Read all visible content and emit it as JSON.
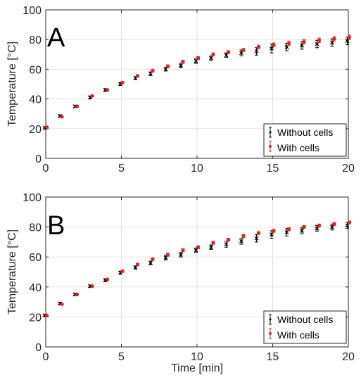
{
  "chart_data": [
    {
      "type": "scatter",
      "panel_label": "A",
      "xlabel": "",
      "ylabel": "Temperature [°C]",
      "xlim": [
        0,
        20
      ],
      "ylim": [
        0,
        100
      ],
      "xticks": [
        "0",
        "5",
        "10",
        "15",
        "20"
      ],
      "yticks": [
        "0",
        "20",
        "40",
        "60",
        "80",
        "100"
      ],
      "grid": true,
      "legend_position": "bottom-right",
      "series": [
        {
          "name": "Without cells",
          "color": "#000000",
          "marker": "x",
          "x": [
            0,
            1,
            2,
            3,
            4,
            5,
            6,
            7,
            8,
            9,
            10,
            11,
            12,
            13,
            14,
            15,
            16,
            17,
            18,
            19,
            20
          ],
          "y": [
            20.5,
            28.5,
            35,
            41,
            46,
            50,
            54,
            57,
            60,
            62.5,
            65.5,
            67.5,
            69.5,
            71,
            72,
            74,
            75,
            76,
            77,
            78,
            79
          ],
          "err": [
            0.8,
            0.8,
            0.8,
            1,
            1,
            1,
            1,
            1.2,
            1.2,
            1.5,
            1.5,
            1.5,
            1.5,
            2,
            2.5,
            3,
            2.5,
            2.5,
            2.5,
            2.5,
            2.5
          ]
        },
        {
          "name": "With cells",
          "color": "#d62728",
          "marker": "dot",
          "x": [
            0,
            1,
            2,
            3,
            4,
            5,
            6,
            7,
            8,
            9,
            10,
            11,
            12,
            13,
            14,
            15,
            16,
            17,
            18,
            19,
            20
          ],
          "y": [
            21,
            28,
            35,
            42,
            46,
            51,
            55.5,
            59,
            62,
            65,
            67.5,
            70,
            71.5,
            73,
            75,
            76.5,
            77.5,
            78.5,
            79.5,
            80.5,
            81.5
          ],
          "err": [
            0.5,
            0.5,
            0.5,
            0.5,
            0.8,
            0.8,
            0.8,
            1,
            1,
            1,
            1,
            1,
            1,
            1,
            1.2,
            1.2,
            1.5,
            1.5,
            1.5,
            1.5,
            1.5
          ]
        }
      ]
    },
    {
      "type": "scatter",
      "panel_label": "B",
      "xlabel": "Time [min]",
      "ylabel": "Temperature [°C]",
      "xlim": [
        0,
        20
      ],
      "ylim": [
        0,
        100
      ],
      "xticks": [
        "0",
        "5",
        "10",
        "15",
        "20"
      ],
      "yticks": [
        "0",
        "20",
        "40",
        "60",
        "80",
        "100"
      ],
      "grid": true,
      "legend_position": "bottom-right",
      "series": [
        {
          "name": "Without cells",
          "color": "#000000",
          "marker": "x",
          "x": [
            0,
            1,
            2,
            3,
            4,
            5,
            6,
            7,
            8,
            9,
            10,
            11,
            12,
            13,
            14,
            15,
            16,
            17,
            18,
            19,
            20
          ],
          "y": [
            21,
            29,
            35,
            40.5,
            44.5,
            49.5,
            53,
            56,
            59.5,
            61.5,
            64.5,
            66.5,
            68.5,
            70.5,
            72.5,
            75,
            76.5,
            77.5,
            79,
            80,
            81
          ],
          "err": [
            0.8,
            0.8,
            0.8,
            0.8,
            1,
            1,
            1,
            1.2,
            1.5,
            1.5,
            1.5,
            1.5,
            2,
            2,
            2.5,
            2.5,
            2.5,
            2,
            2,
            2,
            2
          ]
        },
        {
          "name": "With cells",
          "color": "#d62728",
          "marker": "dot",
          "x": [
            0,
            1,
            2,
            3,
            4,
            5,
            6,
            7,
            8,
            9,
            10,
            11,
            12,
            13,
            14,
            15,
            16,
            17,
            18,
            19,
            20
          ],
          "y": [
            21,
            28.5,
            35,
            40.5,
            45,
            50.5,
            55,
            58.5,
            61.5,
            64.5,
            66.5,
            69.5,
            71.5,
            74,
            76,
            77.5,
            78.5,
            80,
            81,
            82,
            83
          ],
          "err": [
            0.5,
            0.5,
            0.5,
            0.5,
            0.8,
            0.8,
            0.8,
            0.8,
            1,
            1,
            1,
            1,
            1,
            1,
            1,
            1,
            1,
            1,
            1,
            1,
            1
          ]
        }
      ]
    }
  ]
}
